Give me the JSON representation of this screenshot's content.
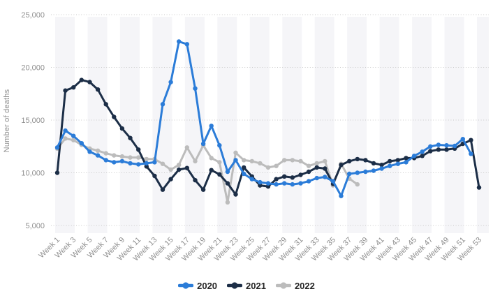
{
  "chart_data": {
    "type": "line",
    "title": "",
    "xlabel": "",
    "ylabel": "Number of deaths",
    "ylim": [
      5000,
      25000
    ],
    "xlim": [
      1,
      53
    ],
    "grid": "horizontal-dotted",
    "legend_position": "bottom",
    "background_stripes": "alternating light vertical bands every 4 weeks",
    "y_ticks": [
      25000,
      20000,
      15000,
      10000,
      5000
    ],
    "y_tick_labels": [
      "25,000",
      "20,000",
      "15,000",
      "10,000",
      "5,000"
    ],
    "x_tick_weeks": [
      1,
      3,
      5,
      7,
      9,
      11,
      13,
      15,
      17,
      19,
      21,
      23,
      25,
      27,
      29,
      31,
      33,
      35,
      37,
      39,
      41,
      43,
      45,
      47,
      49,
      51,
      53
    ],
    "x_tick_labels": [
      "Week 1",
      "Week 3",
      "Week 5",
      "Week 7",
      "Week 9",
      "Week 11",
      "Week 13",
      "Week 15",
      "Week 17",
      "Week 19",
      "Week 21",
      "Week 23",
      "Week 25",
      "Week 27",
      "Week 29",
      "Week 31",
      "Week 33",
      "Week 35",
      "Week 37",
      "Week 39",
      "Week 41",
      "Week 43",
      "Week 45",
      "Week 47",
      "Week 49",
      "Week 51",
      "Week 53"
    ],
    "weeks": [
      1,
      2,
      3,
      4,
      5,
      6,
      7,
      8,
      9,
      10,
      11,
      12,
      13,
      14,
      15,
      16,
      17,
      18,
      19,
      20,
      21,
      22,
      23,
      24,
      25,
      26,
      27,
      28,
      29,
      30,
      31,
      32,
      33,
      34,
      35,
      36,
      37,
      38,
      39,
      40,
      41,
      42,
      43,
      44,
      45,
      46,
      47,
      48,
      49,
      50,
      51,
      52,
      53
    ],
    "series": [
      {
        "name": "2020",
        "color": "#2b7cd8",
        "values": [
          12400,
          14000,
          13500,
          12800,
          12000,
          11650,
          11200,
          11000,
          11100,
          10900,
          10800,
          10900,
          11000,
          16500,
          18600,
          22450,
          22200,
          18000,
          12750,
          14450,
          12600,
          10100,
          11200,
          9900,
          9400,
          9100,
          9000,
          8900,
          9000,
          8900,
          9000,
          9200,
          9500,
          9600,
          9200,
          7800,
          9900,
          10000,
          10100,
          10200,
          10400,
          10650,
          10850,
          11000,
          11600,
          12000,
          12500,
          12650,
          12600,
          12550,
          13200,
          11800,
          null
        ]
      },
      {
        "name": "2021",
        "color": "#1c2e47",
        "values": [
          10000,
          17800,
          18100,
          18800,
          18600,
          17900,
          16500,
          15300,
          14200,
          13300,
          12200,
          10600,
          9700,
          8400,
          9400,
          10300,
          10450,
          9300,
          8400,
          10250,
          9850,
          9000,
          7950,
          10500,
          9650,
          8800,
          8700,
          9400,
          9650,
          9550,
          9800,
          10100,
          10500,
          10400,
          8950,
          10750,
          11100,
          11300,
          11200,
          10900,
          10750,
          11100,
          11200,
          11400,
          11400,
          11600,
          12050,
          12200,
          12200,
          12300,
          12750,
          13100,
          8600
        ]
      },
      {
        "name": "2022",
        "color": "#bcbcbc",
        "values": [
          12300,
          13250,
          13100,
          12650,
          12300,
          12100,
          11850,
          11650,
          11550,
          11450,
          11450,
          11300,
          11300,
          10850,
          10300,
          10750,
          12400,
          11100,
          12600,
          11400,
          11000,
          7200,
          11900,
          11200,
          11100,
          10900,
          10500,
          10650,
          11200,
          11200,
          11100,
          10650,
          10900,
          11100,
          8800,
          10850,
          9450,
          8900,
          null,
          null,
          null,
          null,
          null,
          null,
          null,
          null,
          null,
          null,
          null,
          null,
          null,
          null,
          null
        ]
      }
    ],
    "style": {
      "stripe_color": "#f5f5f8",
      "gridline_color": "#c9c9c9",
      "tick_text_color": "#8f8f8f",
      "legend_text_color": "#262626"
    }
  }
}
